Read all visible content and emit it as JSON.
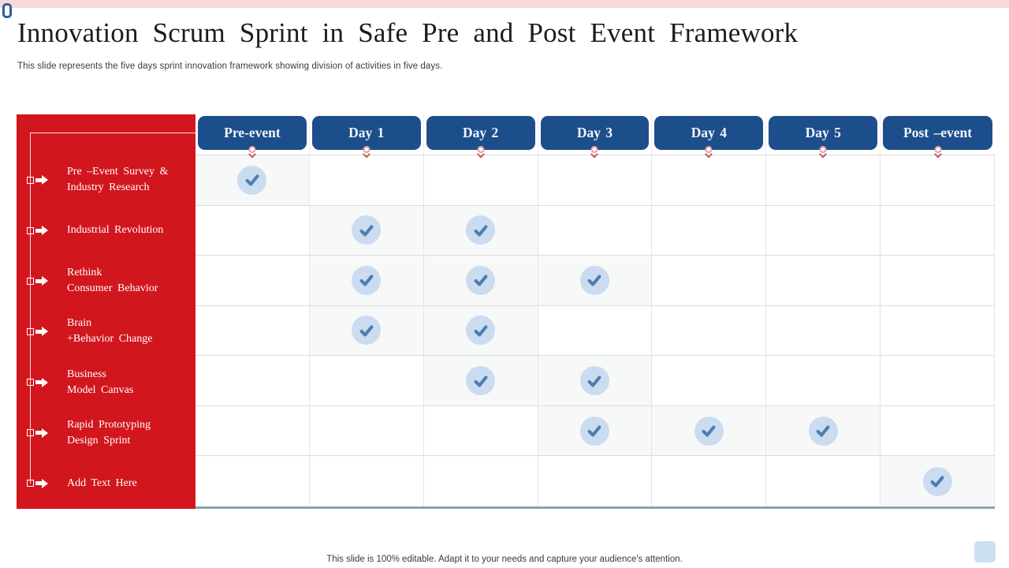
{
  "slide": {
    "title": "Innovation Scrum Sprint in Safe Pre and Post Event Framework",
    "subtitle": "This slide represents the five days sprint innovation framework showing division of activities in five days.",
    "footer": "This slide is 100% editable. Adapt it to your needs and capture your audience's attention."
  },
  "colors": {
    "sidebar_red": "#d2161e",
    "header_blue": "#1d4e8c",
    "check_circle_bg": "#cbdcf0",
    "check_mark": "#4c7eb2",
    "checked_cell_bg": "#f7f8f8",
    "grid_line": "#dcdcdc",
    "top_bar_pink": "#f6dadb",
    "bottom_rule_teal": "#8aa6ae",
    "corner_square_border": "#2c5f9b",
    "bottom_right_square": "#cde0f2"
  },
  "chart_data": {
    "type": "table",
    "title": "Innovation Scrum Sprint in Safe Pre and Post Event Framework",
    "columns": [
      "Pre-event",
      "Day 1",
      "Day 2",
      "Day 3",
      "Day 4",
      "Day 5",
      "Post –event"
    ],
    "rows": [
      {
        "label_lines": [
          "Pre –Event Survey &",
          "Industry Research"
        ],
        "checks": [
          1,
          0,
          0,
          0,
          0,
          0,
          0
        ]
      },
      {
        "label_lines": [
          "Industrial Revolution"
        ],
        "checks": [
          0,
          1,
          1,
          0,
          0,
          0,
          0
        ]
      },
      {
        "label_lines": [
          "Rethink",
          "Consumer Behavior"
        ],
        "checks": [
          0,
          1,
          1,
          1,
          0,
          0,
          0
        ]
      },
      {
        "label_lines": [
          "Brain",
          "+Behavior Change"
        ],
        "checks": [
          0,
          1,
          1,
          0,
          0,
          0,
          0
        ]
      },
      {
        "label_lines": [
          "Business",
          "Model Canvas"
        ],
        "checks": [
          0,
          0,
          1,
          1,
          0,
          0,
          0
        ]
      },
      {
        "label_lines": [
          "Rapid Prototyping",
          "Design Sprint"
        ],
        "checks": [
          0,
          0,
          0,
          1,
          1,
          1,
          0
        ]
      },
      {
        "label_lines": [
          "Add Text Here"
        ],
        "checks": [
          0,
          0,
          0,
          0,
          0,
          0,
          1
        ]
      }
    ]
  }
}
